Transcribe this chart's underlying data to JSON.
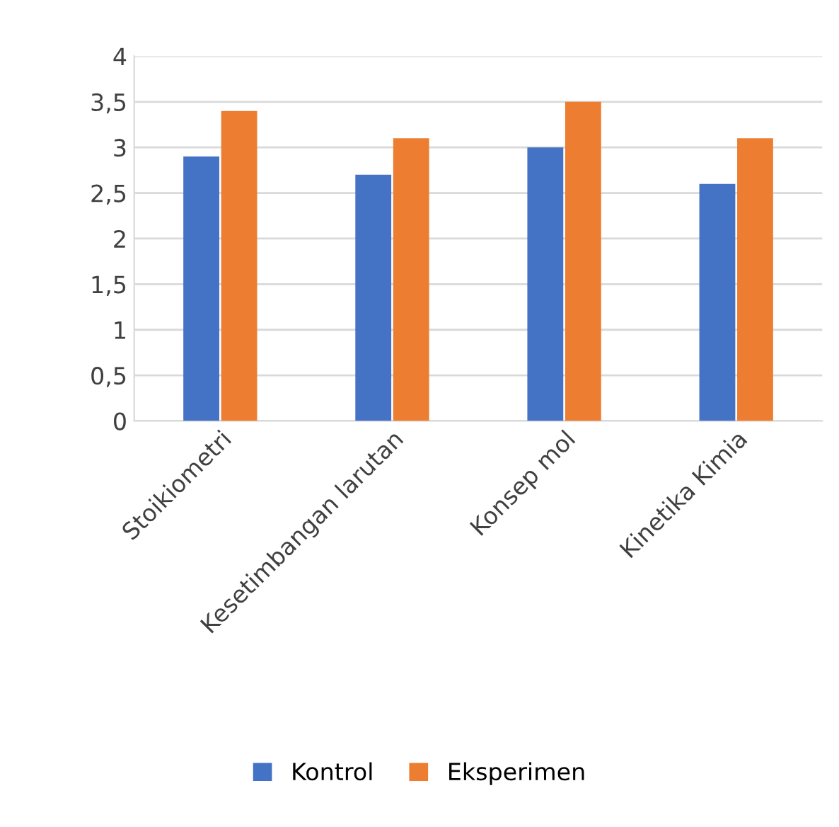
{
  "chart_data": {
    "type": "bar",
    "categories": [
      "Stoikiometri",
      "Kesetimbangan larutan",
      "Konsep mol",
      "Kinetika Kimia"
    ],
    "series": [
      {
        "name": "Kontrol",
        "color": "#4472c4",
        "values": [
          2.9,
          2.7,
          3.0,
          2.6
        ]
      },
      {
        "name": "Eksperimen",
        "color": "#ed7d31",
        "values": [
          3.4,
          3.1,
          3.5,
          3.1
        ]
      }
    ],
    "ylim": [
      0,
      4
    ],
    "yticks": [
      0,
      {
        "value": 0.5,
        "label": "0,5"
      },
      1,
      {
        "value": 1.5,
        "label": "1,5"
      },
      2,
      {
        "value": 2.5,
        "label": "2,5"
      },
      3,
      {
        "value": 3.5,
        "label": "3,5"
      },
      4
    ],
    "grid": "y",
    "legend": "bottom"
  }
}
